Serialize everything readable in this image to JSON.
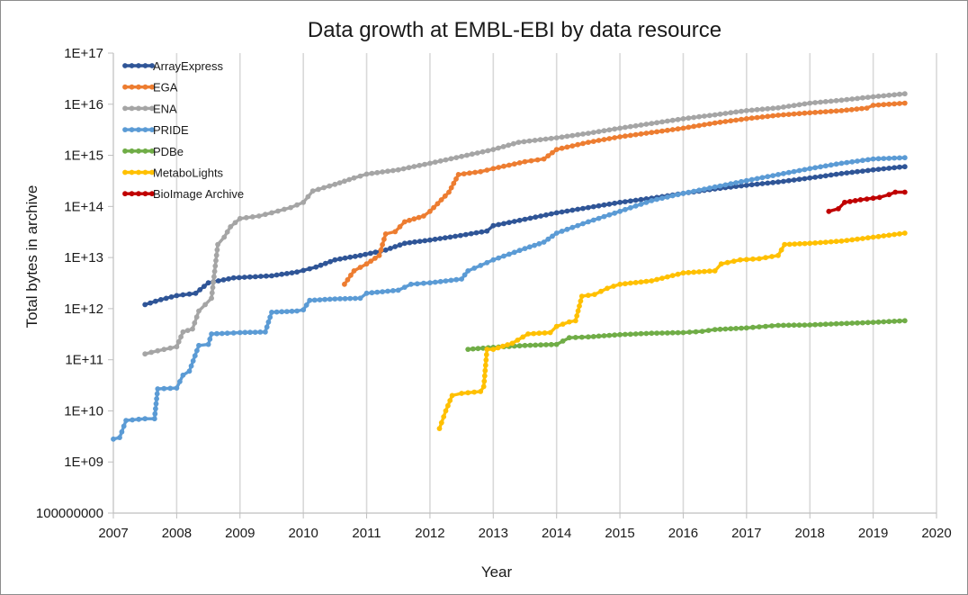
{
  "chart_data": {
    "type": "line",
    "title": "Data growth at EMBL-EBI by data resource",
    "xlabel": "Year",
    "ylabel": "Total bytes in archive",
    "y_scale": "log10",
    "xlim": [
      2007,
      2020
    ],
    "ylim": [
      100000000,
      100000000000000000
    ],
    "grid": "vertical",
    "legend_position": "top-left",
    "x_ticks": [
      "2007",
      "2008",
      "2009",
      "2010",
      "2011",
      "2012",
      "2013",
      "2014",
      "2015",
      "2016",
      "2017",
      "2018",
      "2019",
      "2020"
    ],
    "y_ticks": [
      "100000000",
      "1E+09",
      "1E+10",
      "1E+11",
      "1E+12",
      "1E+13",
      "1E+14",
      "1E+15",
      "1E+16",
      "1E+17"
    ],
    "series": [
      {
        "name": "ArrayExpress",
        "color": "#2f5597",
        "points": [
          [
            2007.5,
            1200000000000.0
          ],
          [
            2007.75,
            1500000000000.0
          ],
          [
            2008.0,
            1800000000000.0
          ],
          [
            2008.3,
            2000000000000.0
          ],
          [
            2008.5,
            3200000000000.0
          ],
          [
            2008.9,
            4000000000000.0
          ],
          [
            2009.5,
            4400000000000.0
          ],
          [
            2009.9,
            5200000000000.0
          ],
          [
            2010.2,
            6500000000000.0
          ],
          [
            2010.5,
            9000000000000.0
          ],
          [
            2010.9,
            11000000000000.0
          ],
          [
            2011.3,
            14000000000000.0
          ],
          [
            2011.6,
            19000000000000.0
          ],
          [
            2012.0,
            22000000000000.0
          ],
          [
            2012.4,
            26000000000000.0
          ],
          [
            2012.9,
            33000000000000.0
          ],
          [
            2013.0,
            42000000000000.0
          ],
          [
            2013.5,
            56000000000000.0
          ],
          [
            2014.0,
            75000000000000.0
          ],
          [
            2014.5,
            95000000000000.0
          ],
          [
            2015.0,
            120000000000000.0
          ],
          [
            2015.5,
            145000000000000.0
          ],
          [
            2016.0,
            180000000000000.0
          ],
          [
            2016.5,
            220000000000000.0
          ],
          [
            2017.0,
            260000000000000.0
          ],
          [
            2017.5,
            300000000000000.0
          ],
          [
            2018.0,
            360000000000000.0
          ],
          [
            2018.5,
            440000000000000.0
          ],
          [
            2019.0,
            520000000000000.0
          ],
          [
            2019.5,
            600000000000000.0
          ]
        ]
      },
      {
        "name": "EGA",
        "color": "#ed7d31",
        "points": [
          [
            2010.65,
            3000000000000.0
          ],
          [
            2010.8,
            5500000000000.0
          ],
          [
            2011.0,
            7500000000000.0
          ],
          [
            2011.2,
            11000000000000.0
          ],
          [
            2011.3,
            29000000000000.0
          ],
          [
            2011.45,
            32000000000000.0
          ],
          [
            2011.6,
            50000000000000.0
          ],
          [
            2011.9,
            65000000000000.0
          ],
          [
            2012.0,
            80000000000000.0
          ],
          [
            2012.3,
            190000000000000.0
          ],
          [
            2012.45,
            420000000000000.0
          ],
          [
            2012.8,
            480000000000000.0
          ],
          [
            2013.0,
            550000000000000.0
          ],
          [
            2013.5,
            750000000000000.0
          ],
          [
            2013.8,
            850000000000000.0
          ],
          [
            2014.0,
            1300000000000000.0
          ],
          [
            2014.5,
            1800000000000000.0
          ],
          [
            2015.0,
            2300000000000000.0
          ],
          [
            2015.5,
            2800000000000000.0
          ],
          [
            2016.0,
            3400000000000000.0
          ],
          [
            2016.5,
            4300000000000000.0
          ],
          [
            2017.0,
            5200000000000000.0
          ],
          [
            2017.5,
            6100000000000000.0
          ],
          [
            2018.0,
            6800000000000000.0
          ],
          [
            2018.5,
            7500000000000000.0
          ],
          [
            2018.9,
            8400000000000000.0
          ],
          [
            2019.0,
            9500000000000000.0
          ],
          [
            2019.5,
            1.05e+16
          ]
        ]
      },
      {
        "name": "ENA",
        "color": "#a5a5a5",
        "points": [
          [
            2007.5,
            130000000000.0
          ],
          [
            2007.7,
            150000000000.0
          ],
          [
            2008.0,
            180000000000.0
          ],
          [
            2008.1,
            350000000000.0
          ],
          [
            2008.25,
            400000000000.0
          ],
          [
            2008.35,
            900000000000.0
          ],
          [
            2008.45,
            1200000000000.0
          ],
          [
            2008.55,
            1600000000000.0
          ],
          [
            2008.65,
            18000000000000.0
          ],
          [
            2008.75,
            25000000000000.0
          ],
          [
            2008.85,
            40000000000000.0
          ],
          [
            2009.0,
            58000000000000.0
          ],
          [
            2009.3,
            65000000000000.0
          ],
          [
            2009.5,
            75000000000000.0
          ],
          [
            2009.8,
            95000000000000.0
          ],
          [
            2010.0,
            120000000000000.0
          ],
          [
            2010.15,
            200000000000000.0
          ],
          [
            2010.5,
            270000000000000.0
          ],
          [
            2010.8,
            360000000000000.0
          ],
          [
            2011.0,
            430000000000000.0
          ],
          [
            2011.5,
            520000000000000.0
          ],
          [
            2012.0,
            700000000000000.0
          ],
          [
            2012.5,
            950000000000000.0
          ],
          [
            2013.0,
            1300000000000000.0
          ],
          [
            2013.4,
            1800000000000000.0
          ],
          [
            2014.0,
            2200000000000000.0
          ],
          [
            2014.5,
            2700000000000000.0
          ],
          [
            2015.0,
            3400000000000000.0
          ],
          [
            2015.5,
            4200000000000000.0
          ],
          [
            2016.0,
            5200000000000000.0
          ],
          [
            2016.5,
            6200000000000000.0
          ],
          [
            2017.0,
            7500000000000000.0
          ],
          [
            2017.5,
            8500000000000000.0
          ],
          [
            2018.0,
            1.05e+16
          ],
          [
            2018.5,
            1.2e+16
          ],
          [
            2019.0,
            1.4e+16
          ],
          [
            2019.5,
            1.6e+16
          ]
        ]
      },
      {
        "name": "PRIDE",
        "color": "#5b9bd5",
        "points": [
          [
            2007.0,
            2800000000.0
          ],
          [
            2007.1,
            3000000000.0
          ],
          [
            2007.2,
            6500000000.0
          ],
          [
            2007.5,
            7000000000.0
          ],
          [
            2007.65,
            7000000000.0
          ],
          [
            2007.7,
            27000000000.0
          ],
          [
            2008.0,
            28000000000.0
          ],
          [
            2008.1,
            50000000000.0
          ],
          [
            2008.2,
            60000000000.0
          ],
          [
            2008.35,
            190000000000.0
          ],
          [
            2008.5,
            200000000000.0
          ],
          [
            2008.55,
            320000000000.0
          ],
          [
            2008.8,
            330000000000.0
          ],
          [
            2009.0,
            340000000000.0
          ],
          [
            2009.4,
            350000000000.0
          ],
          [
            2009.5,
            850000000000.0
          ],
          [
            2009.9,
            900000000000.0
          ],
          [
            2010.0,
            950000000000.0
          ],
          [
            2010.1,
            1450000000000.0
          ],
          [
            2010.5,
            1550000000000.0
          ],
          [
            2010.9,
            1600000000000.0
          ],
          [
            2011.0,
            2000000000000.0
          ],
          [
            2011.5,
            2300000000000.0
          ],
          [
            2011.7,
            3000000000000.0
          ],
          [
            2012.0,
            3200000000000.0
          ],
          [
            2012.5,
            3800000000000.0
          ],
          [
            2012.6,
            5500000000000.0
          ],
          [
            2012.8,
            7000000000000.0
          ],
          [
            2013.0,
            9000000000000.0
          ],
          [
            2013.5,
            15000000000000.0
          ],
          [
            2013.8,
            20000000000000.0
          ],
          [
            2014.0,
            30000000000000.0
          ],
          [
            2014.5,
            50000000000000.0
          ],
          [
            2015.0,
            80000000000000.0
          ],
          [
            2015.5,
            130000000000000.0
          ],
          [
            2016.0,
            180000000000000.0
          ],
          [
            2016.5,
            240000000000000.0
          ],
          [
            2017.0,
            320000000000000.0
          ],
          [
            2017.5,
            420000000000000.0
          ],
          [
            2018.0,
            550000000000000.0
          ],
          [
            2018.5,
            700000000000000.0
          ],
          [
            2019.0,
            850000000000000.0
          ],
          [
            2019.5,
            900000000000000.0
          ]
        ]
      },
      {
        "name": "PDBe",
        "color": "#70ad47",
        "points": [
          [
            2012.6,
            160000000000.0
          ],
          [
            2013.0,
            175000000000.0
          ],
          [
            2013.5,
            190000000000.0
          ],
          [
            2014.0,
            200000000000.0
          ],
          [
            2014.2,
            270000000000.0
          ],
          [
            2014.5,
            280000000000.0
          ],
          [
            2015.0,
            310000000000.0
          ],
          [
            2015.5,
            330000000000.0
          ],
          [
            2016.0,
            340000000000.0
          ],
          [
            2016.3,
            360000000000.0
          ],
          [
            2016.5,
            390000000000.0
          ],
          [
            2017.0,
            420000000000.0
          ],
          [
            2017.3,
            450000000000.0
          ],
          [
            2017.5,
            470000000000.0
          ],
          [
            2018.0,
            480000000000.0
          ],
          [
            2018.5,
            510000000000.0
          ],
          [
            2019.0,
            540000000000.0
          ],
          [
            2019.5,
            580000000000.0
          ]
        ]
      },
      {
        "name": "MetaboLights",
        "color": "#ffc000",
        "points": [
          [
            2012.15,
            4500000000.0
          ],
          [
            2012.25,
            10000000000.0
          ],
          [
            2012.35,
            20000000000.0
          ],
          [
            2012.5,
            22000000000.0
          ],
          [
            2012.8,
            24000000000.0
          ],
          [
            2012.85,
            30000000000.0
          ],
          [
            2012.9,
            160000000000.0
          ],
          [
            2013.0,
            160000000000.0
          ],
          [
            2013.3,
            210000000000.0
          ],
          [
            2013.55,
            320000000000.0
          ],
          [
            2013.9,
            340000000000.0
          ],
          [
            2014.0,
            450000000000.0
          ],
          [
            2014.2,
            550000000000.0
          ],
          [
            2014.3,
            580000000000.0
          ],
          [
            2014.4,
            1750000000000.0
          ],
          [
            2014.6,
            1900000000000.0
          ],
          [
            2014.8,
            2500000000000.0
          ],
          [
            2015.0,
            3000000000000.0
          ],
          [
            2015.5,
            3500000000000.0
          ],
          [
            2016.0,
            5000000000000.0
          ],
          [
            2016.5,
            5500000000000.0
          ],
          [
            2016.6,
            7500000000000.0
          ],
          [
            2016.9,
            9000000000000.0
          ],
          [
            2017.2,
            9500000000000.0
          ],
          [
            2017.5,
            11000000000000.0
          ],
          [
            2017.6,
            18000000000000.0
          ],
          [
            2018.0,
            19000000000000.0
          ],
          [
            2018.5,
            21000000000000.0
          ],
          [
            2019.0,
            25000000000000.0
          ],
          [
            2019.5,
            30000000000000.0
          ]
        ]
      },
      {
        "name": "BioImage Archive",
        "color": "#c00000",
        "points": [
          [
            2018.3,
            80000000000000.0
          ],
          [
            2018.45,
            90000000000000.0
          ],
          [
            2018.55,
            120000000000000.0
          ],
          [
            2018.8,
            135000000000000.0
          ],
          [
            2019.1,
            150000000000000.0
          ],
          [
            2019.25,
            170000000000000.0
          ],
          [
            2019.35,
            190000000000000.0
          ],
          [
            2019.5,
            190000000000000.0
          ]
        ]
      }
    ]
  }
}
